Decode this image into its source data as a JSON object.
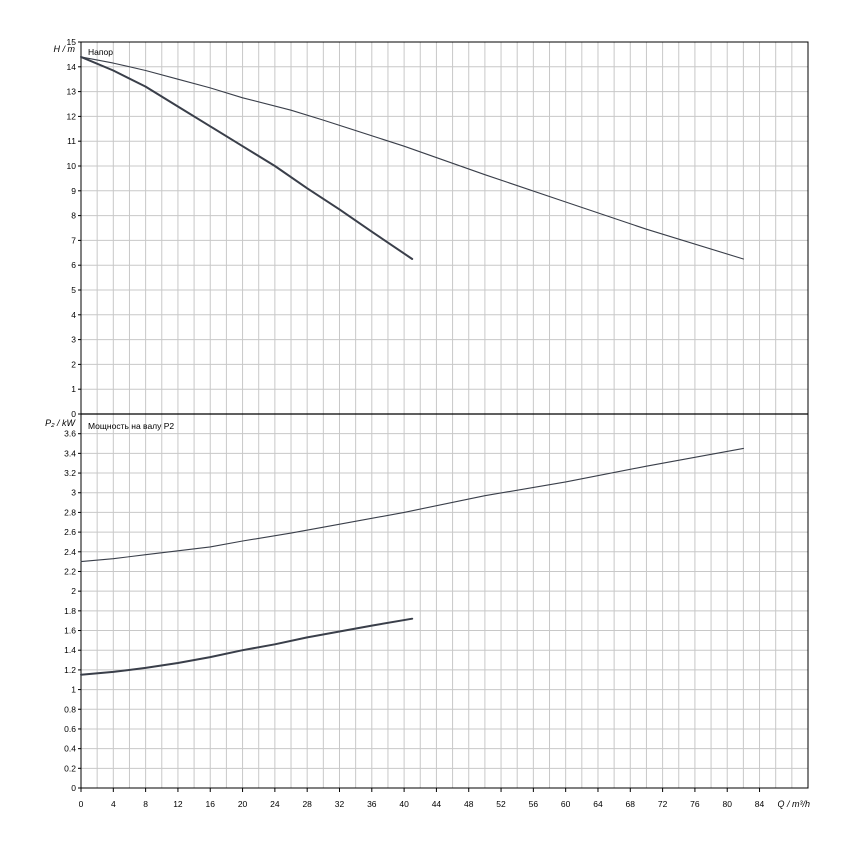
{
  "chart_data": [
    {
      "type": "line",
      "panel": "head",
      "title": "Напор",
      "ylabel": "H / m",
      "xlabel": "Q / m³/h",
      "xlim": [
        0,
        90
      ],
      "ylim": [
        0,
        15
      ],
      "x_ticks": [
        0,
        4,
        8,
        12,
        16,
        20,
        24,
        28,
        32,
        36,
        40,
        44,
        48,
        52,
        56,
        60,
        64,
        68,
        72,
        76,
        80,
        84
      ],
      "y_ticks": [
        0,
        1,
        2,
        3,
        4,
        5,
        6,
        7,
        8,
        9,
        10,
        11,
        12,
        13,
        14,
        15
      ],
      "grid": true,
      "series": [
        {
          "color": "#3a3f4a",
          "points": [
            [
              0,
              14.4
            ],
            [
              4,
              14.15
            ],
            [
              8,
              13.85
            ],
            [
              12,
              13.5
            ],
            [
              16,
              13.15
            ],
            [
              20,
              12.75
            ],
            [
              26,
              12.25
            ],
            [
              30,
              11.85
            ],
            [
              40,
              10.8
            ],
            [
              50,
              9.65
            ],
            [
              60,
              8.55
            ],
            [
              70,
              7.45
            ],
            [
              82,
              6.25
            ]
          ]
        },
        {
          "color": "#3a3f4a",
          "points": [
            [
              0,
              14.4
            ],
            [
              4,
              13.85
            ],
            [
              8,
              13.2
            ],
            [
              12,
              12.4
            ],
            [
              16,
              11.6
            ],
            [
              20,
              10.8
            ],
            [
              24,
              10.0
            ],
            [
              28,
              9.1
            ],
            [
              32,
              8.25
            ],
            [
              36,
              7.35
            ],
            [
              41,
              6.25
            ]
          ]
        }
      ]
    },
    {
      "type": "line",
      "panel": "power",
      "title": "Мощность на валу P2",
      "ylabel": "P₂ / kW",
      "xlabel": "Q / m³/h",
      "xlim": [
        0,
        90
      ],
      "ylim": [
        0,
        3.8
      ],
      "x_ticks": [
        0,
        4,
        8,
        12,
        16,
        20,
        24,
        28,
        32,
        36,
        40,
        44,
        48,
        52,
        56,
        60,
        64,
        68,
        72,
        76,
        80,
        84
      ],
      "y_ticks": [
        "0",
        "0.2",
        "0.4",
        "0.6",
        "0.8",
        "1",
        "1.2",
        "1.4",
        "1.6",
        "1.8",
        "2",
        "2.2",
        "2.4",
        "2.6",
        "2.8",
        "3",
        "3.2",
        "3.4",
        "3.6"
      ],
      "grid": true,
      "series": [
        {
          "color": "#3a3f4a",
          "points": [
            [
              0,
              2.3
            ],
            [
              4,
              2.33
            ],
            [
              8,
              2.37
            ],
            [
              12,
              2.41
            ],
            [
              16,
              2.45
            ],
            [
              20,
              2.51
            ],
            [
              26,
              2.59
            ],
            [
              30,
              2.65
            ],
            [
              40,
              2.8
            ],
            [
              50,
              2.97
            ],
            [
              60,
              3.11
            ],
            [
              70,
              3.27
            ],
            [
              82,
              3.45
            ]
          ]
        },
        {
          "color": "#3a3f4a",
          "points": [
            [
              0,
              1.15
            ],
            [
              4,
              1.18
            ],
            [
              8,
              1.22
            ],
            [
              12,
              1.27
            ],
            [
              16,
              1.33
            ],
            [
              20,
              1.4
            ],
            [
              24,
              1.46
            ],
            [
              28,
              1.53
            ],
            [
              32,
              1.59
            ],
            [
              36,
              1.65
            ],
            [
              41,
              1.72
            ]
          ]
        }
      ]
    }
  ]
}
